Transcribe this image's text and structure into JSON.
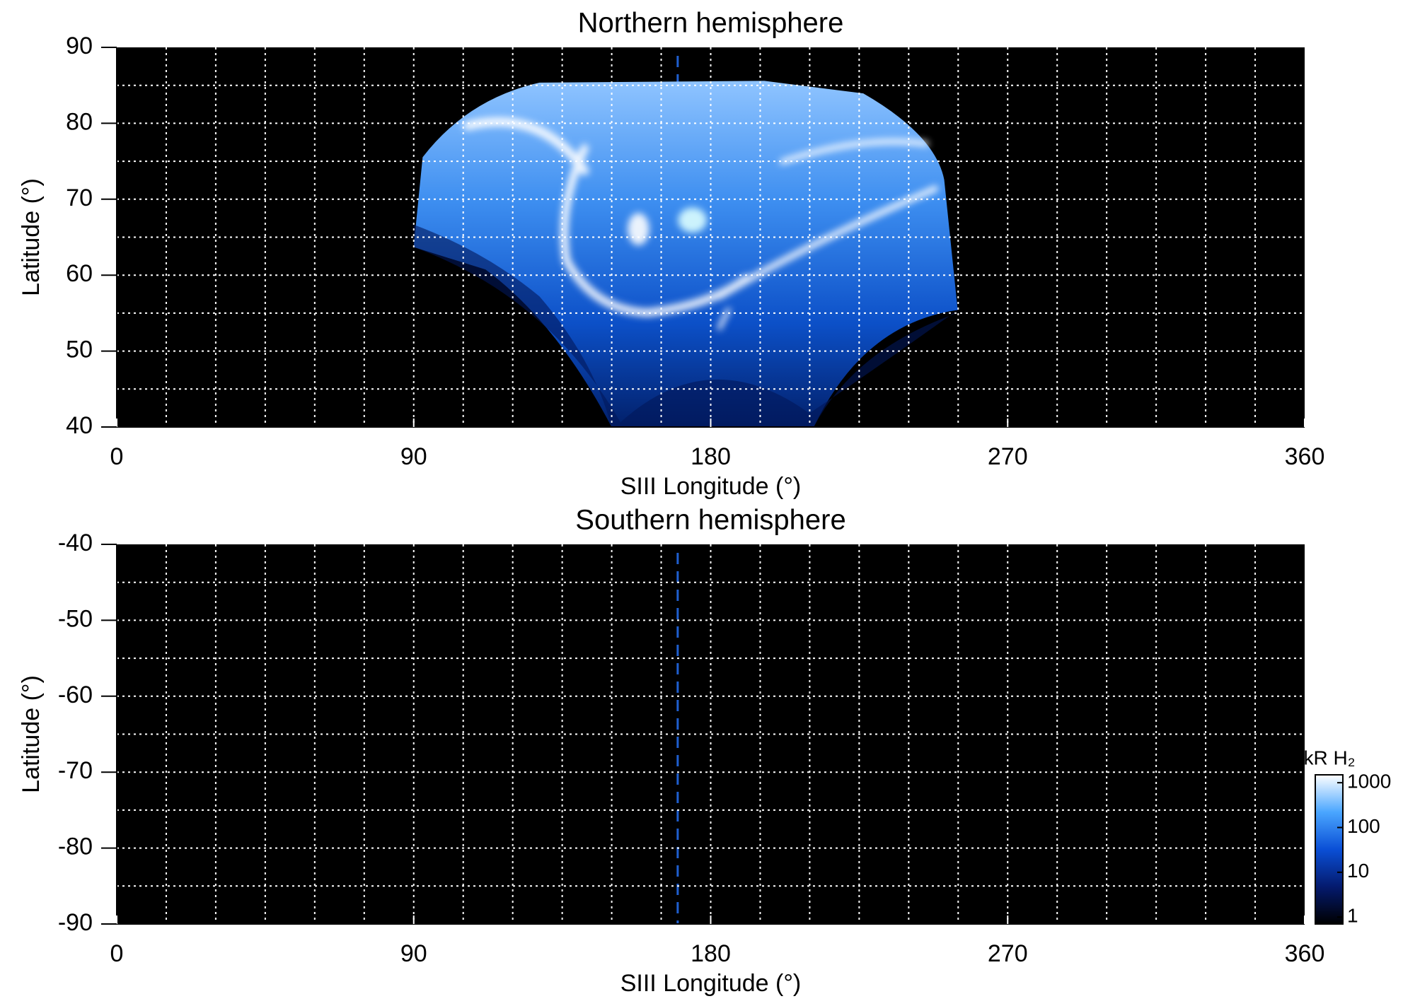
{
  "chart_data": [
    {
      "type": "heatmap",
      "title": "Northern hemisphere",
      "x_label": "SIII Longitude (°)",
      "y_label": "Latitude (°)",
      "xlim": [
        0,
        360
      ],
      "xticks": [
        0,
        90,
        180,
        270,
        360
      ],
      "ylim": [
        40,
        90
      ],
      "yticks": [
        40,
        50,
        60,
        70,
        80,
        90
      ],
      "grid_x": [
        15,
        30,
        45,
        60,
        75,
        90,
        105,
        120,
        135,
        150,
        165,
        180,
        195,
        210,
        225,
        240,
        255,
        270,
        285,
        300,
        315,
        330,
        345
      ],
      "grid_y": [
        45,
        50,
        55,
        60,
        65,
        70,
        75,
        80,
        85
      ],
      "vline": 170,
      "vline_color": "#1f5fd0"
    },
    {
      "type": "heatmap",
      "title": "Southern hemisphere",
      "x_label": "SIII Longitude (°)",
      "y_label": "Latitude (°)",
      "xlim": [
        0,
        360
      ],
      "xticks": [
        0,
        90,
        180,
        270,
        360
      ],
      "ylim": [
        -90,
        -40
      ],
      "yticks": [
        -90,
        -80,
        -70,
        -60,
        -50,
        -40
      ],
      "grid_x": [
        15,
        30,
        45,
        60,
        75,
        90,
        105,
        120,
        135,
        150,
        165,
        180,
        195,
        210,
        225,
        240,
        255,
        270,
        285,
        300,
        315,
        330,
        345
      ],
      "grid_y": [
        -85,
        -80,
        -75,
        -70,
        -65,
        -60,
        -55,
        -50,
        -45
      ],
      "vline": 170,
      "vline_color": "#1f5fd0",
      "colorbar": {
        "label": "kR H₂",
        "scale": "log",
        "lim": [
          0.7,
          1500
        ],
        "ticks": [
          1,
          10,
          100,
          1000
        ]
      }
    }
  ]
}
